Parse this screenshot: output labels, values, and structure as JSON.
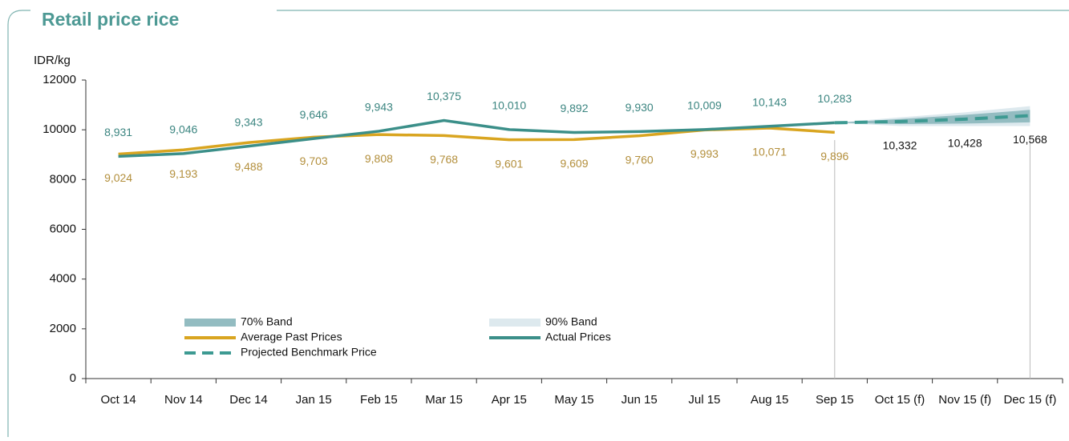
{
  "chart_data": {
    "type": "line",
    "title": "Retail price rice",
    "y_label": "IDR/kg",
    "categories": [
      "Oct 14",
      "Nov 14",
      "Dec 14",
      "Jan 15",
      "Feb 15",
      "Mar 15",
      "Apr 15",
      "May 15",
      "Jun 15",
      "Jul 15",
      "Aug 15",
      "Sep 15",
      "Oct 15 (f)",
      "Nov 15 (f)",
      "Dec 15 (f)"
    ],
    "ylim": [
      0,
      12000
    ],
    "yticks": [
      0,
      2000,
      4000,
      6000,
      8000,
      10000,
      12000
    ],
    "bands": [
      {
        "name": "90% Band",
        "color": "#dde9ee",
        "lower": [
          null,
          null,
          null,
          null,
          null,
          null,
          null,
          null,
          null,
          null,
          null,
          10283,
          10150,
          10150,
          10150
        ],
        "upper": [
          null,
          null,
          null,
          null,
          null,
          null,
          null,
          null,
          null,
          null,
          null,
          10283,
          10500,
          10700,
          10950
        ]
      },
      {
        "name": "70% Band",
        "color": "#93bcc1",
        "lower": [
          null,
          null,
          null,
          null,
          null,
          null,
          null,
          null,
          null,
          null,
          null,
          10283,
          10230,
          10250,
          10300
        ],
        "upper": [
          null,
          null,
          null,
          null,
          null,
          null,
          null,
          null,
          null,
          null,
          null,
          10283,
          10430,
          10600,
          10800
        ]
      }
    ],
    "series": [
      {
        "name": "Average Past Prices",
        "color": "#d9a520",
        "label_color": "#b38f3c",
        "label_side": "below",
        "dashed": false,
        "values": [
          9024,
          9193,
          9488,
          9703,
          9808,
          9768,
          9601,
          9609,
          9760,
          9993,
          10071,
          9896,
          null,
          null,
          null
        ],
        "value_labels": [
          "9,024",
          "9,193",
          "9,488",
          "9,703",
          "9,808",
          "9,768",
          "9,601",
          "9,609",
          "9,760",
          "9,993",
          "10,071",
          "9,896",
          null,
          null,
          null
        ]
      },
      {
        "name": "Actual Prices",
        "color": "#3b8f89",
        "label_color": "#3b8580",
        "label_side": "above",
        "dashed": false,
        "values": [
          8931,
          9046,
          9343,
          9646,
          9943,
          10375,
          10010,
          9892,
          9930,
          10009,
          10143,
          10283,
          null,
          null,
          null
        ],
        "value_labels": [
          "8,931",
          "9,046",
          "9,343",
          "9,646",
          "9,943",
          "10,375",
          "10,010",
          "9,892",
          "9,930",
          "10,009",
          "10,143",
          "10,283",
          null,
          null,
          null
        ]
      },
      {
        "name": "Projected Benchmark Price",
        "color": "#3d9a92",
        "label_color": "#111111",
        "label_side": "below",
        "dashed": true,
        "values": [
          null,
          null,
          null,
          null,
          null,
          null,
          null,
          null,
          null,
          null,
          null,
          10283,
          10332,
          10428,
          10568
        ],
        "value_labels": [
          null,
          null,
          null,
          null,
          null,
          null,
          null,
          null,
          null,
          null,
          null,
          null,
          "10,332",
          "10,428",
          "10,568"
        ]
      }
    ]
  }
}
